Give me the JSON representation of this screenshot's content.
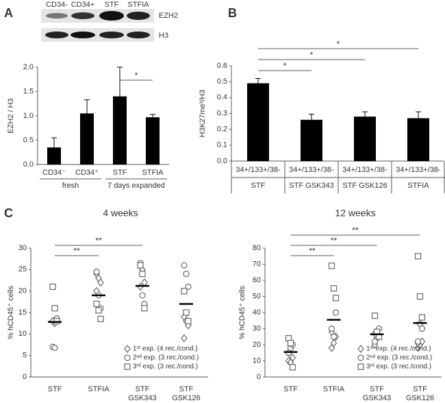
{
  "panel_labels": [
    "A",
    "B",
    "C"
  ],
  "blot": {
    "lanes": [
      "CD34-",
      "CD34+",
      "STF",
      "STFIA"
    ],
    "bands": [
      "EZH2",
      "H3"
    ]
  },
  "chart_data": [
    {
      "type": "bar",
      "y_label": "EZH2 / H3",
      "categories": [
        "CD34⁻",
        "CD34⁺",
        "STF",
        "STFIA"
      ],
      "values": [
        0.35,
        1.05,
        1.4,
        0.97
      ],
      "errors": [
        0.2,
        0.28,
        0.6,
        0.06
      ],
      "color": "#000000",
      "ylim": [
        0,
        2
      ],
      "yticks": [
        {
          "value": 0,
          "label": "0.0"
        },
        0.5,
        {
          "value": 1,
          "label": "1.0"
        },
        1.5,
        {
          "value": 2,
          "label": "2.0"
        }
      ],
      "groups": [
        {
          "label": "fresh",
          "members": [
            0,
            1
          ]
        },
        {
          "label": "7 days expanded",
          "members": [
            2,
            3
          ]
        }
      ],
      "significance": [
        {
          "between": [
            2,
            3
          ],
          "label": "*"
        }
      ]
    },
    {
      "type": "bar",
      "y_label": "H3K27me³/H3",
      "categories": [
        "34+/133+/38-",
        "34+/133+/38-",
        "34+/133+/38-",
        "34+/133+/38-"
      ],
      "subcategories": [
        "STF",
        "STF GSK343",
        "STF GSK126",
        "STFIA"
      ],
      "values": [
        0.49,
        0.26,
        0.28,
        0.27
      ],
      "errors": [
        0.03,
        0.035,
        0.03,
        0.04
      ],
      "color": "#000000",
      "ylim": [
        0,
        0.6
      ],
      "yticks": [
        {
          "value": 0,
          "label": "0.0"
        },
        0.1,
        0.2,
        0.3,
        0.4,
        0.5,
        0.6
      ],
      "significance": [
        {
          "between": [
            0,
            1
          ],
          "label": "*"
        },
        {
          "between": [
            0,
            2
          ],
          "label": "*"
        },
        {
          "between": [
            0,
            3
          ],
          "label": "*"
        }
      ]
    },
    {
      "type": "scatter",
      "title": "4 weeks",
      "y_label": "% hCD45⁺ cells",
      "categories": [
        "STF",
        "STFIA",
        "STF GSK343",
        "STF GSK126"
      ],
      "series": [
        {
          "name": "1ˢᵗ exp. (4 rec./cond.)",
          "marker": "diamond",
          "color": "#666666",
          "values": [
            [
              13,
              12.5,
              13.5,
              13
            ],
            [
              24,
              23,
              22,
              20
            ],
            [
              26,
              25,
              22,
              21
            ],
            [
              9,
              13,
              12,
              14
            ]
          ]
        },
        {
          "name": "2ⁿᵈ exp. (3 rec./cond.)",
          "marker": "circle",
          "color": "#666666",
          "values": [
            [
              7,
              6.8,
              13.6
            ],
            [
              24.5,
              19,
              16
            ],
            [
              26.5,
              19,
              17
            ],
            [
              26,
              24,
              21
            ]
          ]
        },
        {
          "name": "3ʳᵈ exp. (3 rec./cond.)",
          "marker": "square",
          "color": "#666666",
          "values": [
            [
              21,
              16,
              13
            ],
            [
              17,
              15.5,
              13.5
            ],
            [
              26,
              24,
              16
            ],
            [
              20,
              15,
              13
            ]
          ]
        }
      ],
      "means": [
        12.8,
        19,
        21.2,
        17
      ],
      "ylim": [
        0,
        30
      ],
      "yticks": [
        0,
        5,
        10,
        15,
        20,
        25,
        30
      ],
      "legend": "lower right",
      "significance": [
        {
          "between": [
            0,
            1
          ],
          "label": "**"
        },
        {
          "between": [
            0,
            2
          ],
          "label": "**"
        }
      ]
    },
    {
      "type": "scatter",
      "title": "12 weeks",
      "y_label": "% hCD45⁺ cells",
      "categories": [
        "STF",
        "STFIA",
        "STF GSK343",
        "STF GSK126"
      ],
      "series": [
        {
          "name": "1ˢᵗ exp. (4 rec./cond.)",
          "marker": "diamond",
          "color": "#666666",
          "values": [
            [
              10,
              9,
              12,
              15
            ],
            [
              18,
              21,
              25,
              28
            ],
            [
              20,
              24,
              25,
              27
            ],
            [
              18,
              20,
              22,
              21
            ]
          ]
        },
        {
          "name": "2ⁿᵈ exp. (3 rec./cond.)",
          "marker": "circle",
          "color": "#666666",
          "values": [
            [
              15,
              18,
              20
            ],
            [
              30,
              25,
              40
            ],
            [
              22,
              26,
              30
            ],
            [
              22,
              33,
              30
            ]
          ]
        },
        {
          "name": "3ʳᵈ exp. (3 rec./cond.)",
          "marker": "square",
          "color": "#666666",
          "values": [
            [
              24,
              21,
              6
            ],
            [
              69,
              55,
              49
            ],
            [
              38,
              28,
              25
            ],
            [
              75,
              50,
              37
            ]
          ]
        }
      ],
      "means": [
        15.5,
        35.5,
        26.5,
        33.5
      ],
      "ylim": [
        0,
        80
      ],
      "yticks": [
        0,
        10,
        20,
        30,
        40,
        50,
        60,
        70,
        80
      ],
      "legend": "lower right",
      "significance": [
        {
          "between": [
            0,
            1
          ],
          "label": "**"
        },
        {
          "between": [
            0,
            2
          ],
          "label": "**"
        },
        {
          "between": [
            0,
            3
          ],
          "label": "**"
        }
      ]
    }
  ]
}
